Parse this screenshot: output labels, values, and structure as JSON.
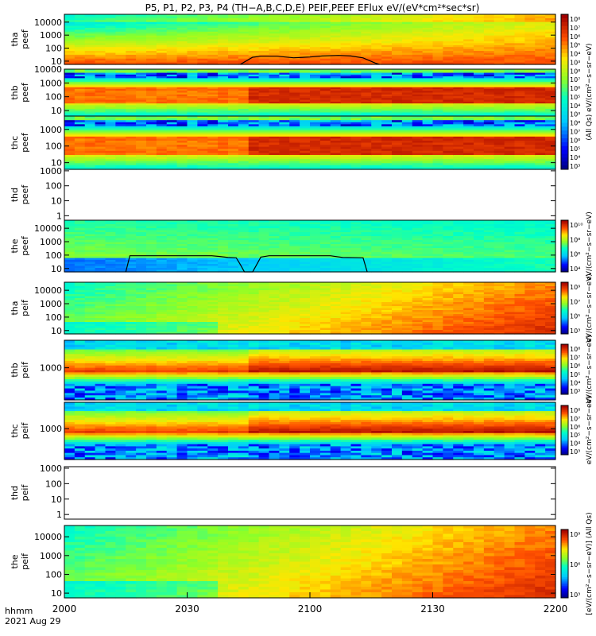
{
  "chart_data": {
    "type": "heatmap",
    "title": "P5, P1, P2, P3, P4 (TH−A,B,C,D,E) PEIF,PEEF EFlux eV/(eV*cm²*sec*sr)",
    "x_ticks": [
      "2000",
      "2030",
      "2100",
      "2130",
      "2200"
    ],
    "x_label_line1": "hhmm",
    "x_label_line2": "2021 Aug 29",
    "x_range_minutes": [
      0,
      120
    ],
    "panels": [
      {
        "id": "tha-peef",
        "label1": "tha",
        "label2": "peef",
        "yticks": [
          "10000",
          "1000",
          "100",
          "10"
        ],
        "ylim_log": [
          0.75,
          4.6
        ],
        "profile": "peef",
        "has_data": true,
        "line": [
          [
            43,
            0.75
          ],
          [
            46,
            1.3
          ],
          [
            48,
            1.38
          ],
          [
            52,
            1.38
          ],
          [
            56,
            1.26
          ],
          [
            60,
            1.32
          ],
          [
            63,
            1.4
          ],
          [
            67,
            1.44
          ],
          [
            70,
            1.4
          ],
          [
            73,
            1.25
          ],
          [
            76,
            0.85
          ],
          [
            77,
            0.75
          ]
        ]
      },
      {
        "id": "thb-peef",
        "label1": "thb",
        "label2": "peef",
        "yticks": [
          "10000",
          "1000",
          "100",
          "10"
        ],
        "ylim_log": [
          0.6,
          4.0
        ],
        "profile": "peef-mag",
        "has_data": true
      },
      {
        "id": "thc-peef",
        "label1": "thc",
        "label2": "peef",
        "yticks": [
          "1000",
          "100",
          "10"
        ],
        "ylim_log": [
          0.6,
          3.8
        ],
        "profile": "peef-mag",
        "has_data": true
      },
      {
        "id": "thd-peef",
        "label1": "thd",
        "label2": "peef",
        "yticks": [
          "1000",
          "100",
          "10",
          "1"
        ],
        "ylim_log": [
          -0.3,
          3.1
        ],
        "profile": "none",
        "has_data": false
      },
      {
        "id": "the-peef",
        "label1": "the",
        "label2": "peef",
        "yticks": [
          "10000",
          "1000",
          "100",
          "10"
        ],
        "ylim_log": [
          0.75,
          4.6
        ],
        "profile": "peef-e",
        "has_data": true,
        "line": [
          [
            15,
            0.75
          ],
          [
            16,
            1.95
          ],
          [
            36,
            1.95
          ],
          [
            38,
            1.9
          ],
          [
            40,
            1.82
          ],
          [
            42,
            1.8
          ],
          [
            43,
            1.3
          ],
          [
            44,
            0.75
          ],
          [
            46,
            0.75
          ],
          [
            47,
            1.3
          ],
          [
            48,
            1.85
          ],
          [
            50,
            1.95
          ],
          [
            65,
            1.95
          ],
          [
            68,
            1.82
          ],
          [
            73,
            1.8
          ],
          [
            74,
            0.75
          ]
        ]
      },
      {
        "id": "tha-peif",
        "label1": "tha",
        "label2": "peif",
        "yticks": [
          "10000",
          "1000",
          "100",
          "10"
        ],
        "ylim_log": [
          0.75,
          4.6
        ],
        "profile": "peif",
        "has_data": true
      },
      {
        "id": "thb-peif",
        "label1": "thb",
        "label2": "peif",
        "yticks": [
          "1000"
        ],
        "ylim_log": [
          1.6,
          4.2
        ],
        "profile": "peif-mag",
        "has_data": true
      },
      {
        "id": "thc-peif",
        "label1": "thc",
        "label2": "peif",
        "yticks": [
          "1000"
        ],
        "ylim_log": [
          1.6,
          4.2
        ],
        "profile": "peif-mag",
        "has_data": true
      },
      {
        "id": "thd-peif",
        "label1": "thd",
        "label2": "peif",
        "yticks": [
          "1000",
          "100",
          "10",
          "1"
        ],
        "ylim_log": [
          -0.3,
          3.1
        ],
        "profile": "none",
        "has_data": false
      },
      {
        "id": "the-peif",
        "label1": "the",
        "label2": "peif",
        "yticks": [
          "10000",
          "1000",
          "100",
          "10"
        ],
        "ylim_log": [
          0.75,
          4.6
        ],
        "profile": "peif",
        "has_data": true
      }
    ],
    "colorbars": [
      {
        "id": "cb1",
        "panels": [
          0,
          2
        ],
        "ticks": [
          "10⁸",
          "10⁷",
          "10⁶",
          "10⁵",
          "10⁴",
          "10³",
          "10⁸",
          "10⁷",
          "10⁶",
          "10⁵",
          "10⁴",
          "10³",
          "10⁸",
          "10⁷",
          "10⁶",
          "10⁵",
          "10⁴",
          "10³"
        ],
        "label": "(All Qs) eV/(cm²−s−sr−eV)"
      },
      {
        "id": "cb2",
        "panels": [
          4,
          4
        ],
        "ticks": [
          "10¹⁰",
          "10⁸",
          "10⁶",
          "10⁴"
        ],
        "label": "eV/(cm²−s−sr−eV)"
      },
      {
        "id": "cb3",
        "panels": [
          5,
          5
        ],
        "ticks": [
          "10⁹",
          "10⁷",
          "10⁵",
          "10³"
        ],
        "label": "eV/(cm²−s−sr−eV)"
      },
      {
        "id": "cb4",
        "panels": [
          6,
          6
        ],
        "ticks": [
          "10⁸",
          "10⁷",
          "10⁶",
          "10⁵",
          "10⁴",
          "10³"
        ],
        "label": "eV/(cm²−s−sr−eV)"
      },
      {
        "id": "cb5",
        "panels": [
          7,
          7
        ],
        "ticks": [
          "10⁸",
          "10⁷",
          "10⁶",
          "10⁵",
          "10⁴",
          "10³"
        ],
        "label": "eV/(cm²−s−sr−eV)"
      },
      {
        "id": "cb6",
        "panels": [
          9,
          9
        ],
        "ticks": [
          "10⁹",
          "10⁶",
          "10³"
        ],
        "label": "[eV/(cm²−s−sr−eV)] (All Qs)"
      }
    ]
  }
}
